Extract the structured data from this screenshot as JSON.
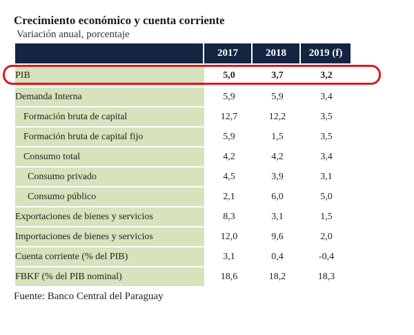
{
  "title": "Crecimiento económico y cuenta corriente",
  "subtitle": "Variación anual, porcentaje",
  "columns": [
    "2017",
    "2018",
    "2019 (f)"
  ],
  "rows": [
    {
      "label": "PIB",
      "values": [
        "5,0",
        "3,7",
        "3,2"
      ]
    },
    {
      "label": "Demanda Interna",
      "values": [
        "5,9",
        "5,9",
        "3,4"
      ]
    },
    {
      "label": "Formación bruta de capital",
      "values": [
        "12,7",
        "12,2",
        "3,5"
      ]
    },
    {
      "label": "Formación bruta de capital fijo",
      "values": [
        "5,9",
        "1,5",
        "3,5"
      ]
    },
    {
      "label": "Consumo total",
      "values": [
        "4,2",
        "4,2",
        "3,4"
      ]
    },
    {
      "label": "Consumo privado",
      "values": [
        "4,5",
        "3,9",
        "3,1"
      ]
    },
    {
      "label": "Consumo público",
      "values": [
        "2,1",
        "6,0",
        "5,0"
      ]
    },
    {
      "label": "Exportaciones de bienes y servicios",
      "values": [
        "8,3",
        "3,1",
        "1,5"
      ]
    },
    {
      "label": "Importaciones de bienes y servicios",
      "values": [
        "12,0",
        "9,6",
        "2,0"
      ]
    },
    {
      "label": "Cuenta corriente (% del PIB)",
      "values": [
        "3,1",
        "0,4",
        "-0,4"
      ]
    },
    {
      "label": "FBKF (% del PIB nominal)",
      "values": [
        "18,6",
        "18,2",
        "18,3"
      ]
    }
  ],
  "source": "Fuente: Banco Central del Paraguay",
  "colors": {
    "header_bg": "#142542",
    "label_bg": "#d6e3bc",
    "highlight": "#e0151b"
  }
}
